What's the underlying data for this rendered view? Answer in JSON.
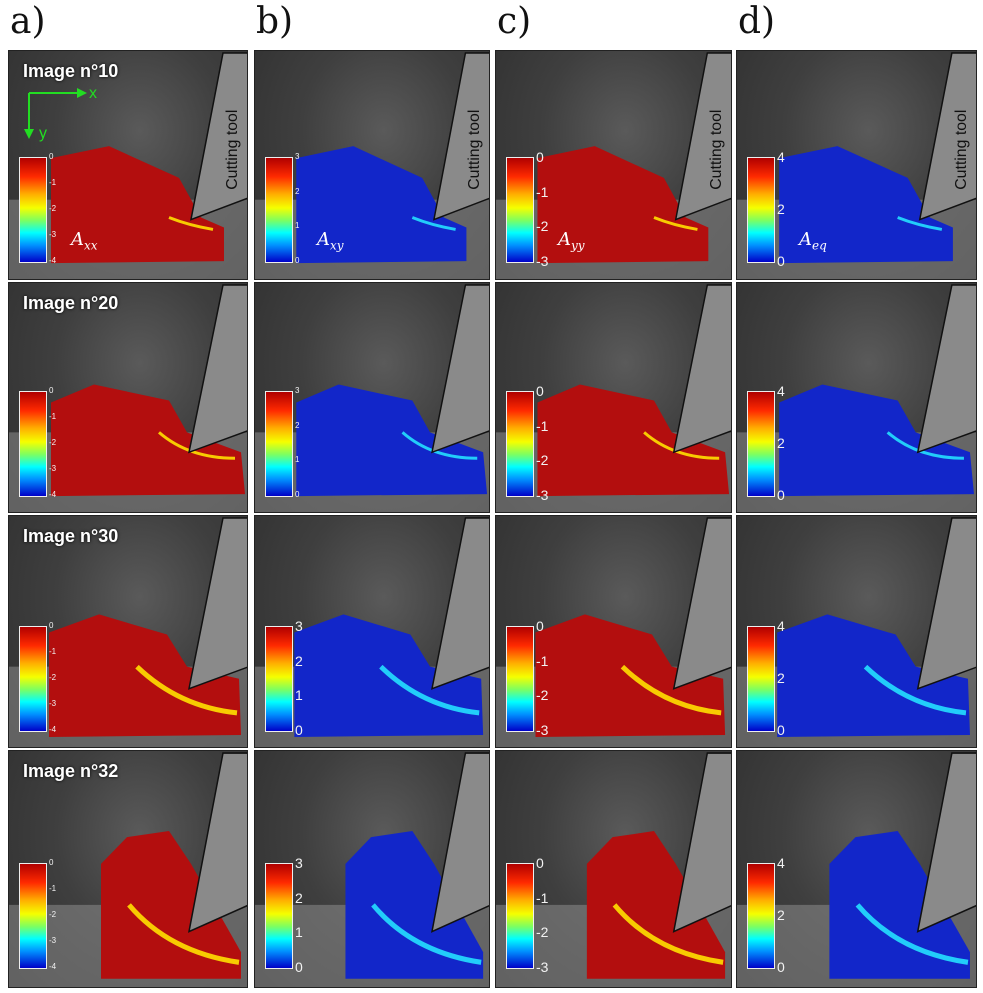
{
  "column_labels": [
    "a)",
    "b)",
    "c)",
    "d)"
  ],
  "row_labels": [
    "Image n°10",
    "Image n°20",
    "Image n°30",
    "Image n°32"
  ],
  "tool_label": "Cutting tool",
  "axes": {
    "x": "x",
    "y": "y"
  },
  "quantities": [
    {
      "symbol": "A",
      "sub": "xx",
      "ticks": [
        "0",
        "-1",
        "-2",
        "-3",
        "-4"
      ],
      "field_color": "#b30e0e"
    },
    {
      "symbol": "A",
      "sub": "xy",
      "ticks": [
        "3",
        "2",
        "1",
        "0"
      ],
      "field_color": "#1226c9"
    },
    {
      "symbol": "A",
      "sub": "yy",
      "ticks": [
        "0",
        "-1",
        "-2",
        "-3"
      ],
      "field_color": "#b30e0e"
    },
    {
      "symbol": "A",
      "sub": "eq",
      "ticks": [
        "4",
        "2",
        "0"
      ],
      "field_color": "#1226c9"
    }
  ],
  "colors": {
    "tool": "#8a8a8a",
    "hot": "#ffe000",
    "cyan": "#25e0ff"
  }
}
